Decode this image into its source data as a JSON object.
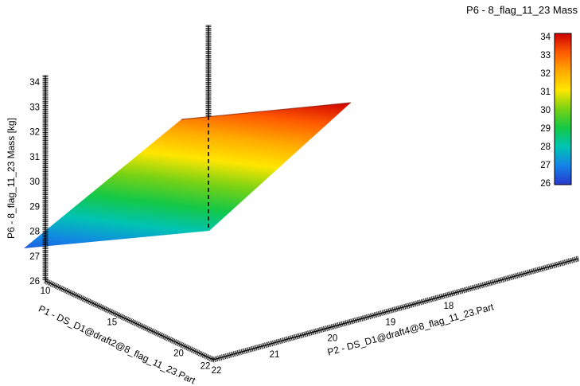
{
  "chart_data": {
    "type": "surface",
    "z_axis": {
      "title": "P6 - 8_flag_11_23 Mass [kg]",
      "ticks": [
        26,
        27,
        28,
        29,
        30,
        31,
        32,
        33,
        34
      ],
      "range": [
        26,
        34
      ]
    },
    "p1_axis": {
      "title": "P1 - DS_D1@draft2@8_flag_11_23.Part",
      "ticks": [
        10,
        15,
        20,
        22
      ],
      "range": [
        10,
        22
      ]
    },
    "p2_axis": {
      "title": "P2 - DS_D1@draft4@8_flag_11_23.Part",
      "ticks": [
        22,
        21,
        20,
        19,
        18
      ],
      "range": [
        22,
        18
      ]
    },
    "legend": {
      "title": "P6 - 8_flag_11_23 Mass",
      "ticks": [
        34,
        33,
        32,
        31,
        30,
        29,
        28,
        27,
        26
      ]
    },
    "colormap": [
      {
        "value": 26,
        "color": "#2837cd"
      },
      {
        "value": 27,
        "color": "#1482e6"
      },
      {
        "value": 28,
        "color": "#00c3b4"
      },
      {
        "value": 29,
        "color": "#14c846"
      },
      {
        "value": 30,
        "color": "#78d214"
      },
      {
        "value": 31,
        "color": "#ffe600"
      },
      {
        "value": 32,
        "color": "#ffaa00"
      },
      {
        "value": 33,
        "color": "#ff5a00"
      },
      {
        "value": 34,
        "color": "#cd0000"
      }
    ],
    "surface_points": [
      {
        "p1": 10,
        "p2": 22,
        "mass": 26.5
      },
      {
        "p1": 22,
        "p2": 22,
        "mass": 32.5
      },
      {
        "p1": 10,
        "p2": 18,
        "mass": 28.0
      },
      {
        "p1": 22,
        "p2": 18,
        "mass": 34.0
      }
    ]
  }
}
